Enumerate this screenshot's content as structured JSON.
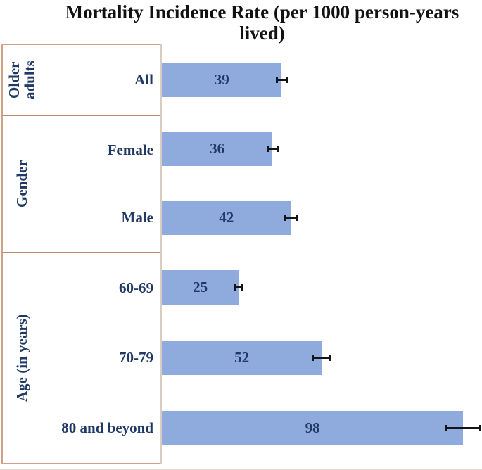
{
  "chart_data": {
    "type": "bar",
    "orientation": "horizontal",
    "title": "Mortality Incidence Rate (per 1000 person-years lived)",
    "xlim": [
      0,
      104
    ],
    "grid": false,
    "legend": false,
    "bar_color": "#8faadc",
    "label_color": "#1f3864",
    "error_bar_color": "#151515",
    "panel_border_color": "#cfa189",
    "divider_color": "#bb8a6e",
    "axis_line_color": "#d8ccc3",
    "groups": [
      {
        "label": "Older adults",
        "rows": [
          {
            "category": "All",
            "value": 39,
            "error": 2
          }
        ]
      },
      {
        "label": "Gender",
        "rows": [
          {
            "category": "Female",
            "value": 36,
            "error": 2
          },
          {
            "category": "Male",
            "value": 42,
            "error": 2.5
          }
        ]
      },
      {
        "label": "Age (in years)",
        "rows": [
          {
            "category": "60-69",
            "value": 25,
            "error": 1.5
          },
          {
            "category": "70-79",
            "value": 52,
            "error": 3.2
          },
          {
            "category": "80 and beyond",
            "value": 98,
            "error": 6
          }
        ]
      }
    ]
  }
}
